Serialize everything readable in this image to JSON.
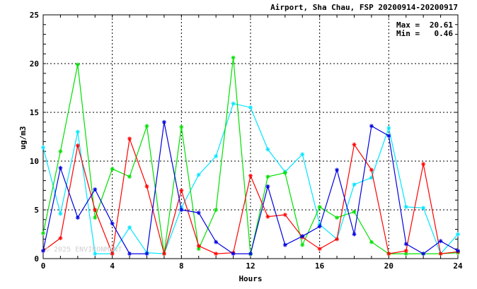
{
  "chart_data": {
    "type": "line",
    "title": "Airport, Sha Chau, FSP 20200914-20200917",
    "xlabel": "Hours",
    "ylabel": "ug/m3",
    "xlim": [
      0,
      24
    ],
    "ylim": [
      0,
      25
    ],
    "xticks": [
      0,
      4,
      8,
      12,
      16,
      20,
      24
    ],
    "yticks": [
      0,
      5,
      10,
      15,
      20,
      25
    ],
    "grid": true,
    "stats": {
      "max_label": "Max =",
      "max_value": "20.61",
      "min_label": "Min =",
      "min_value": "0.46"
    },
    "watermark": "© 2025 ENVIRONMENT",
    "x": [
      0,
      1,
      2,
      3,
      4,
      5,
      6,
      7,
      8,
      9,
      10,
      11,
      12,
      13,
      14,
      15,
      16,
      17,
      18,
      19,
      20,
      21,
      22,
      23,
      24
    ],
    "series": [
      {
        "color": "#00e5ff",
        "values": [
          11.4,
          4.6,
          13.0,
          0.5,
          0.5,
          3.2,
          0.6,
          0.5,
          5.2,
          8.6,
          10.5,
          15.9,
          15.5,
          11.2,
          8.9,
          10.7,
          3.5,
          2.0,
          7.6,
          8.3,
          13.4,
          5.3,
          5.2,
          0.5,
          2.5
        ]
      },
      {
        "color": "#00e000",
        "values": [
          2.6,
          11.0,
          19.9,
          4.2,
          9.2,
          8.4,
          13.6,
          0.5,
          13.5,
          1.0,
          5.0,
          20.61,
          0.46,
          8.4,
          8.8,
          1.4,
          5.3,
          4.2,
          4.8,
          1.7,
          0.5,
          0.5,
          0.5,
          0.5,
          0.6
        ]
      },
      {
        "color": "#ff0000",
        "values": [
          0.8,
          2.1,
          11.6,
          5.0,
          0.5,
          12.3,
          7.4,
          0.5,
          7.0,
          1.3,
          0.5,
          0.6,
          8.5,
          4.3,
          4.5,
          2.2,
          1.0,
          2.0,
          11.7,
          9.1,
          0.5,
          0.8,
          9.7,
          0.5,
          0.7
        ]
      },
      {
        "color": "#0000e0",
        "values": [
          0.8,
          9.3,
          4.2,
          7.1,
          3.6,
          0.5,
          0.5,
          14.0,
          5.0,
          4.7,
          1.7,
          0.5,
          0.5,
          7.4,
          1.4,
          2.3,
          3.3,
          9.1,
          2.5,
          13.6,
          12.6,
          1.5,
          0.5,
          1.8,
          0.8
        ]
      }
    ]
  }
}
